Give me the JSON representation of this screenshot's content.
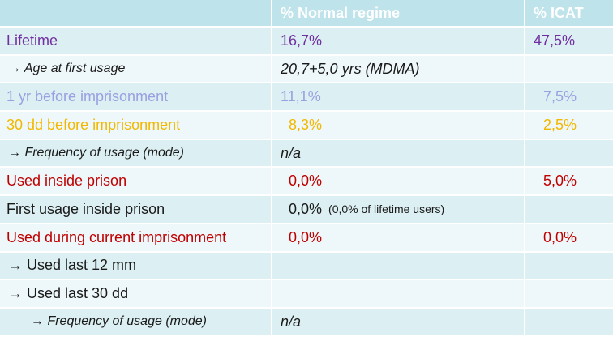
{
  "colors": {
    "header_bg": "#bfe3ea",
    "row_alt_bg": "#dceff3",
    "row_plain_bg": "#eef7f9",
    "purple": "#7030a0",
    "lavender": "#9aa0e0",
    "orange": "#f2b800",
    "red": "#c00000"
  },
  "header": {
    "col1": "",
    "col2": "% Normal regime",
    "col3": "% ICAT"
  },
  "rows": [
    {
      "label": "Lifetime",
      "normal": "16,7%",
      "icat": "47,5%",
      "note": ""
    },
    {
      "label": "→ Age at first usage",
      "normal": "20,7+5,0 yrs (MDMA)",
      "icat": "",
      "note": ""
    },
    {
      "label": "1 yr before imprisonment",
      "normal": "11,1%",
      "icat": "7,5%",
      "note": ""
    },
    {
      "label": "30 dd before imprisonment",
      "normal": "8,3%",
      "icat": "2,5%",
      "note": ""
    },
    {
      "label": "→ Frequency of usage (mode)",
      "normal": "n/a",
      "icat": "",
      "note": ""
    },
    {
      "label": "Used inside prison",
      "normal": "0,0%",
      "icat": "5,0%",
      "note": ""
    },
    {
      "label": "First usage inside prison",
      "normal": "0,0%",
      "icat": "",
      "note": "(0,0% of lifetime users)"
    },
    {
      "label": "Used during current imprisonment",
      "normal": "0,0%",
      "icat": "0,0%",
      "note": ""
    },
    {
      "label": "→ Used last 12 mm",
      "normal": "",
      "icat": "",
      "note": ""
    },
    {
      "label": "→ Used last 30 dd",
      "normal": "",
      "icat": "",
      "note": ""
    },
    {
      "label": "→ Frequency of usage (mode)",
      "normal": "n/a",
      "icat": "",
      "note": ""
    }
  ]
}
